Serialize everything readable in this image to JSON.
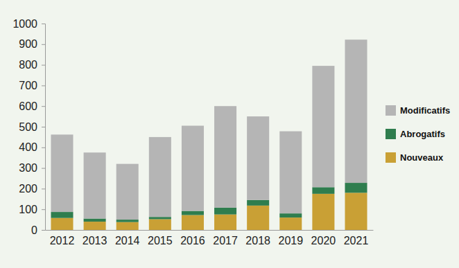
{
  "chart_data": {
    "type": "bar",
    "stacked": true,
    "grid": false,
    "legend": "right",
    "categories": [
      "2012",
      "2013",
      "2014",
      "2015",
      "2016",
      "2017",
      "2018",
      "2019",
      "2020",
      "2021"
    ],
    "series": [
      {
        "name": "Nouveaux",
        "color": "#c9a035",
        "values": [
          58,
          40,
          38,
          52,
          72,
          75,
          118,
          60,
          175,
          180
        ]
      },
      {
        "name": "Abrogatifs",
        "color": "#2f7d4e",
        "values": [
          29,
          15,
          12,
          11,
          20,
          33,
          27,
          20,
          32,
          48
        ]
      },
      {
        "name": "Modificatifs",
        "color": "#b5b5b5",
        "values": [
          375,
          320,
          270,
          387,
          413,
          492,
          405,
          398,
          588,
          694
        ]
      }
    ],
    "ylim": [
      0,
      1000
    ],
    "yticks": [
      0,
      100,
      200,
      300,
      400,
      500,
      600,
      700,
      800,
      900,
      1000
    ]
  }
}
